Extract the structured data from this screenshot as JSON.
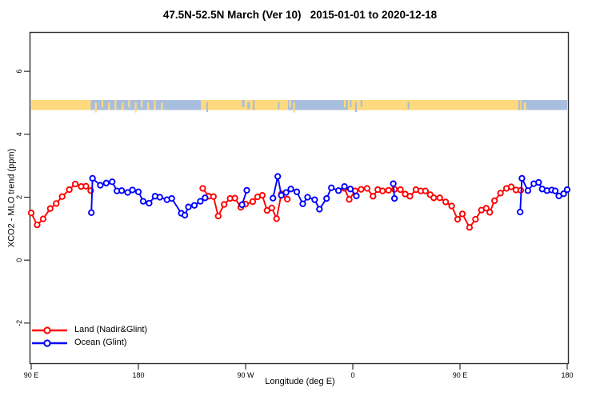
{
  "title": "47.5N-52.5N March (Ver 10)   2015-01-01 to 2020-12-18",
  "chart_data": {
    "type": "line",
    "title": "47.5N-52.5N March (Ver 10)   2015-01-01 to 2020-12-18",
    "xlabel": "Longitude (deg E)",
    "ylabel": "XCO2 - MLO trend (ppm)",
    "xlim": [
      90,
      540
    ],
    "ylim": [
      -3.3,
      7.25
    ],
    "grid": "off",
    "legend_position": "bottom-left",
    "x_ticks": [
      {
        "value": 90,
        "label": "90 E"
      },
      {
        "value": 180,
        "label": "180"
      },
      {
        "value": 270,
        "label": "90 W"
      },
      {
        "value": 360,
        "label": "0"
      },
      {
        "value": 450,
        "label": "90 E"
      },
      {
        "value": 540,
        "label": "180"
      }
    ],
    "y_ticks": [
      {
        "value": -2,
        "label": "-2"
      },
      {
        "value": 0,
        "label": "0"
      },
      {
        "value": 2,
        "label": "2"
      },
      {
        "value": 4,
        "label": "4"
      },
      {
        "value": 6,
        "label": "6"
      }
    ],
    "series": [
      {
        "name": "Land (Nadir&Glint)",
        "color": "#ff0000",
        "marker": "open-circle",
        "segments": [
          [
            [
              90,
              1.5
            ],
            [
              95,
              1.12
            ],
            [
              100,
              1.31
            ],
            [
              106,
              1.64
            ],
            [
              111,
              1.8
            ],
            [
              116,
              2.02
            ],
            [
              122,
              2.24
            ],
            [
              127,
              2.42
            ],
            [
              132,
              2.34
            ],
            [
              136,
              2.35
            ],
            [
              140,
              2.21
            ]
          ],
          [
            [
              234,
              2.28
            ],
            [
              239,
              2.03
            ],
            [
              243,
              2.02
            ],
            [
              247,
              1.4
            ],
            [
              252,
              1.77
            ],
            [
              257,
              1.96
            ],
            [
              261,
              1.97
            ],
            [
              266,
              1.68
            ],
            [
              270,
              1.78
            ],
            [
              276,
              1.86
            ],
            [
              280,
              2.01
            ],
            [
              284,
              2.06
            ],
            [
              288,
              1.58
            ],
            [
              292,
              1.66
            ],
            [
              296,
              1.32
            ],
            [
              300,
              2.1
            ],
            [
              305,
              1.94
            ]
          ],
          [
            [
              353,
              2.28
            ],
            [
              357,
              1.93
            ],
            [
              362,
              2.2
            ],
            [
              367,
              2.25
            ],
            [
              372,
              2.28
            ],
            [
              377,
              2.03
            ],
            [
              381,
              2.24
            ],
            [
              385,
              2.2
            ],
            [
              390,
              2.22
            ],
            [
              395,
              2.25
            ],
            [
              400,
              2.24
            ],
            [
              404,
              2.1
            ],
            [
              408,
              2.03
            ],
            [
              413,
              2.24
            ],
            [
              417,
              2.2
            ],
            [
              421,
              2.2
            ],
            [
              425,
              2.08
            ],
            [
              428,
              1.98
            ],
            [
              433,
              1.98
            ],
            [
              438,
              1.85
            ],
            [
              443,
              1.72
            ],
            [
              448,
              1.3
            ],
            [
              452,
              1.47
            ],
            [
              458,
              1.04
            ],
            [
              463,
              1.3
            ],
            [
              468,
              1.59
            ],
            [
              472,
              1.65
            ],
            [
              475,
              1.52
            ],
            [
              479,
              1.89
            ],
            [
              484,
              2.13
            ],
            [
              489,
              2.28
            ],
            [
              493,
              2.33
            ],
            [
              497,
              2.23
            ],
            [
              501,
              2.22
            ]
          ]
        ]
      },
      {
        "name": "Ocean (Glint)",
        "color": "#0000ff",
        "marker": "open-circle",
        "segments": [
          [
            [
              140.5,
              1.51
            ],
            [
              141.5,
              2.6
            ],
            [
              148,
              2.38
            ],
            [
              153,
              2.45
            ],
            [
              158,
              2.49
            ],
            [
              162,
              2.2
            ],
            [
              166,
              2.21
            ],
            [
              171,
              2.15
            ],
            [
              175,
              2.23
            ],
            [
              180,
              2.17
            ],
            [
              184,
              1.87
            ],
            [
              189,
              1.81
            ],
            [
              194,
              2.03
            ],
            [
              198,
              2.0
            ],
            [
              204,
              1.92
            ],
            [
              208,
              1.96
            ],
            [
              216,
              1.49
            ],
            [
              219,
              1.43
            ],
            [
              222,
              1.69
            ],
            [
              227,
              1.74
            ],
            [
              232,
              1.87
            ],
            [
              236,
              1.98
            ]
          ],
          [
            [
              267,
              1.76
            ],
            [
              271,
              2.22
            ]
          ],
          [
            [
              293,
              1.97
            ],
            [
              297,
              2.66
            ],
            [
              300,
              2.06
            ],
            [
              304,
              2.15
            ],
            [
              308,
              2.26
            ],
            [
              313,
              2.17
            ],
            [
              318,
              1.79
            ],
            [
              322,
              2.0
            ],
            [
              328,
              1.92
            ],
            [
              332,
              1.62
            ],
            [
              338,
              1.96
            ],
            [
              342,
              2.3
            ],
            [
              348,
              2.21
            ],
            [
              353,
              2.34
            ],
            [
              358,
              2.26
            ],
            [
              363,
              2.04
            ]
          ],
          [
            [
              394,
              2.43
            ],
            [
              395,
              1.96
            ]
          ],
          [
            [
              500.5,
              1.53
            ],
            [
              502,
              2.6
            ],
            [
              507,
              2.21
            ],
            [
              512,
              2.43
            ],
            [
              516,
              2.47
            ],
            [
              519,
              2.26
            ],
            [
              523,
              2.21
            ],
            [
              527,
              2.23
            ],
            [
              530,
              2.2
            ],
            [
              533,
              2.04
            ],
            [
              537,
              2.11
            ],
            [
              540,
              2.24
            ]
          ]
        ]
      }
    ],
    "land_ocean_band": {
      "description": "land/ocean strip drawn at y=5",
      "y_center": 4.93,
      "height": 0.32,
      "land_color": "#ffd97e",
      "ocean_color": "#a8bede",
      "land_segments": [
        [
          90,
          140
        ],
        [
          232.5,
          305.5
        ],
        [
          356,
          501.5
        ]
      ],
      "land_specks": [
        [
          143.5,
          145
        ],
        [
          149,
          150.5
        ],
        [
          154.5,
          156
        ],
        [
          160,
          161.5
        ],
        [
          166,
          167.5
        ],
        [
          171.5,
          173
        ],
        [
          177,
          178.5
        ],
        [
          182,
          183.5
        ],
        [
          187.5,
          189
        ],
        [
          193,
          194.5
        ],
        [
          199,
          200.5
        ],
        [
          306.5,
          308
        ],
        [
          310,
          311.5
        ],
        [
          352.5,
          354
        ],
        [
          503.5,
          505.5
        ]
      ],
      "ocean_specks": [
        [
          237,
          238.5
        ],
        [
          267,
          269
        ],
        [
          271.5,
          273.5
        ],
        [
          276,
          277.5
        ],
        [
          297,
          298.5
        ],
        [
          357.5,
          359
        ],
        [
          362,
          363.5
        ],
        [
          366.5,
          368
        ],
        [
          406,
          407.5
        ],
        [
          499,
          500.5
        ]
      ]
    },
    "legend": {
      "items": [
        {
          "label": "Land (Nadir&Glint)",
          "color": "#ff0000"
        },
        {
          "label": "Ocean (Glint)",
          "color": "#0000ff"
        }
      ]
    }
  }
}
